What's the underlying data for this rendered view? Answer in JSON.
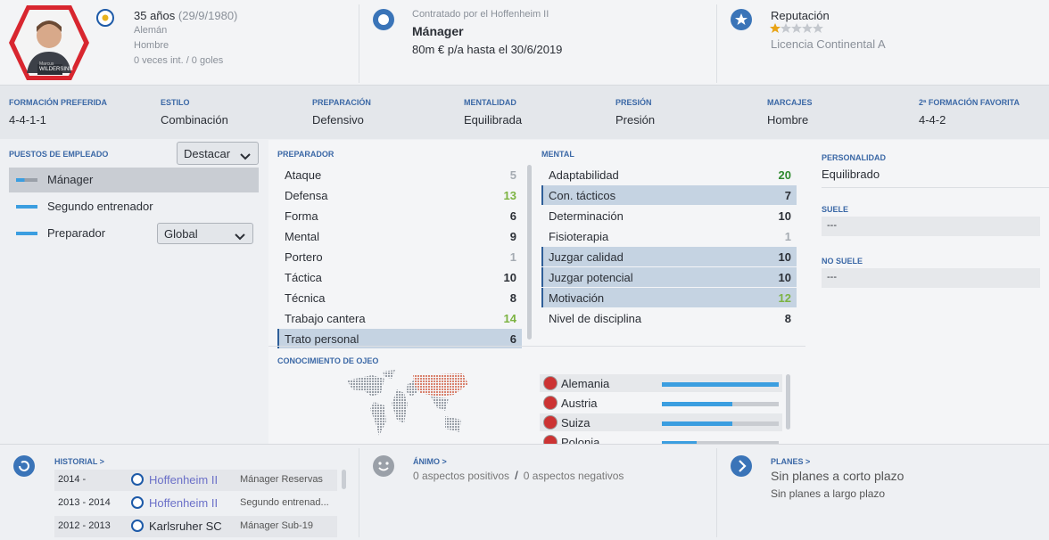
{
  "header": {
    "photo_first_name": "Marcus",
    "photo_last_name": "WILDERSINN",
    "age": "35 años",
    "birth_date": "(29/9/1980)",
    "nationality": "Alemán",
    "gender": "Hombre",
    "caps": "0 veces int. / 0 goles",
    "contract_club": "Contratado por el Hoffenheim II",
    "role": "Mánager",
    "contract": "80m € p/a hasta el 30/6/2019",
    "reputation_label": "Reputación",
    "reputation_stars": {
      "value": 1,
      "max": 5
    },
    "license": "Licencia Continental A"
  },
  "tactics": [
    {
      "label": "FORMACIÓN PREFERIDA",
      "value": "4-4-1-1"
    },
    {
      "label": "ESTILO",
      "value": "Combinación"
    },
    {
      "label": "PREPARACIÓN",
      "value": "Defensivo"
    },
    {
      "label": "MENTALIDAD",
      "value": "Equilibrada"
    },
    {
      "label": "PRESIÓN",
      "value": "Presión"
    },
    {
      "label": "MARCAJES",
      "value": "Hombre"
    },
    {
      "label": "2ª FORMACIÓN FAVORITA",
      "value": "4-4-2"
    }
  ],
  "roles": {
    "title": "PUESTOS DE EMPLEADO",
    "dropdown": "Destacar",
    "items": [
      {
        "name": "Mánager",
        "selected": true
      },
      {
        "name": "Segundo entrenador"
      },
      {
        "name": "Preparador",
        "dropdown": "Global"
      }
    ]
  },
  "coaching": {
    "title": "PREPARADOR",
    "attributes": [
      {
        "name": "Ataque",
        "value": 5
      },
      {
        "name": "Defensa",
        "value": 13
      },
      {
        "name": "Forma",
        "value": 6
      },
      {
        "name": "Mental",
        "value": 9
      },
      {
        "name": "Portero",
        "value": 1
      },
      {
        "name": "Táctica",
        "value": 10
      },
      {
        "name": "Técnica",
        "value": 8
      },
      {
        "name": "Trabajo cantera",
        "value": 14
      },
      {
        "name": "Trato personal",
        "value": 6,
        "highlighted": true
      }
    ]
  },
  "mental": {
    "title": "MENTAL",
    "attributes": [
      {
        "name": "Adaptabilidad",
        "value": 20
      },
      {
        "name": "Con. tácticos",
        "value": 7,
        "highlighted": true
      },
      {
        "name": "Determinación",
        "value": 10
      },
      {
        "name": "Fisioterapia",
        "value": 1
      },
      {
        "name": "Juzgar calidad",
        "value": 10,
        "highlighted": true
      },
      {
        "name": "Juzgar potencial",
        "value": 10,
        "highlighted": true
      },
      {
        "name": "Motivación",
        "value": 12,
        "highlighted": true
      },
      {
        "name": "Nivel de disciplina",
        "value": 8
      }
    ]
  },
  "personality": {
    "title": "PERSONALIDAD",
    "value": "Equilibrado",
    "likes_title": "SUELE",
    "likes": "---",
    "dislikes_title": "NO SUELE",
    "dislikes": "---"
  },
  "scouting": {
    "title": "CONOCIMIENTO DE OJEO",
    "knowledge_range": [
      0,
      100
    ],
    "countries": [
      {
        "name": "Alemania",
        "knowledge": 100
      },
      {
        "name": "Austria",
        "knowledge": 60
      },
      {
        "name": "Suiza",
        "knowledge": 60
      },
      {
        "name": "Polonia",
        "knowledge": 30
      }
    ]
  },
  "history": {
    "title": "HISTORIAL >",
    "rows": [
      {
        "years": "2014 -",
        "club": "Hoffenheim II",
        "club_color": "#6b70c8",
        "role": "Mánager Reservas"
      },
      {
        "years": "2013 - 2014",
        "club": "Hoffenheim II",
        "club_color": "#6b70c8",
        "role": "Segundo entrenad..."
      },
      {
        "years": "2012 - 2013",
        "club": "Karlsruher SC",
        "club_color": "#2b2f36",
        "role": "Mánager Sub-19"
      }
    ]
  },
  "morale": {
    "title": "ÁNIMO >",
    "positive": "0 aspectos positivos",
    "separator": "/",
    "negative": "0 aspectos negativos"
  },
  "plans": {
    "title": "PLANES >",
    "short_term": "Sin planes a corto plazo",
    "long_term": "Sin planes a largo plazo"
  }
}
